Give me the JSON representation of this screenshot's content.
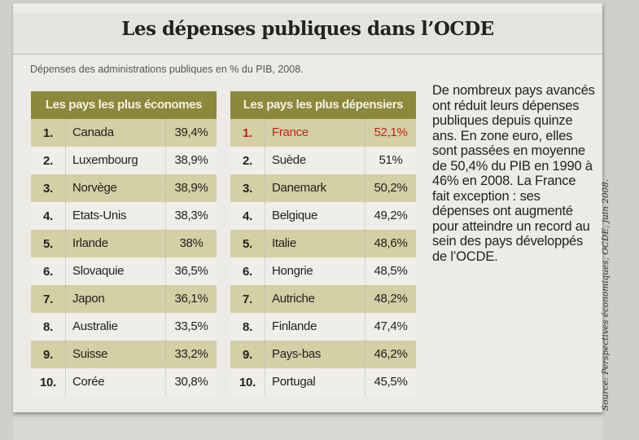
{
  "title": "Les dépenses publiques dans l’OCDE",
  "subtitle": "Dépenses des administrations publiques en % du PIB, 2008.",
  "tables": [
    {
      "header": "Les pays les plus économes",
      "rows": [
        {
          "rank": "1.",
          "country": "Canada",
          "value": "39,4%"
        },
        {
          "rank": "2.",
          "country": "Luxembourg",
          "value": "38,9%"
        },
        {
          "rank": "3.",
          "country": "Norvège",
          "value": "38,9%"
        },
        {
          "rank": "4.",
          "country": "Etats-Unis",
          "value": "38,3%"
        },
        {
          "rank": "5.",
          "country": "Irlande",
          "value": "38%"
        },
        {
          "rank": "6.",
          "country": "Slovaquie",
          "value": "36,5%"
        },
        {
          "rank": "7.",
          "country": "Japon",
          "value": "36,1%"
        },
        {
          "rank": "8.",
          "country": "Australie",
          "value": "33,5%"
        },
        {
          "rank": "9.",
          "country": "Suisse",
          "value": "33,2%"
        },
        {
          "rank": "10.",
          "country": "Corée",
          "value": "30,8%"
        }
      ]
    },
    {
      "header": "Les pays les plus dépensiers",
      "rows": [
        {
          "rank": "1.",
          "country": "France",
          "value": "52,1%"
        },
        {
          "rank": "2.",
          "country": "Suède",
          "value": "51%"
        },
        {
          "rank": "3.",
          "country": "Danemark",
          "value": "50,2%"
        },
        {
          "rank": "4.",
          "country": "Belgique",
          "value": "49,2%"
        },
        {
          "rank": "5.",
          "country": "Italie",
          "value": "48,6%"
        },
        {
          "rank": "6.",
          "country": "Hongrie",
          "value": "48,5%"
        },
        {
          "rank": "7.",
          "country": "Autriche",
          "value": "48,2%"
        },
        {
          "rank": "8.",
          "country": "Finlande",
          "value": "47,4%"
        },
        {
          "rank": "9.",
          "country": "Pays-bas",
          "value": "46,2%"
        },
        {
          "rank": "10.",
          "country": "Portugal",
          "value": "45,5%"
        }
      ]
    }
  ],
  "highlight_color": "#c3241e",
  "header_color": "#8c883c",
  "body_text": "De nombreux pays avancés ont réduit leurs dépenses publiques depuis quinze ans. En zone euro, elles sont passées en moyenne de 50,4% du PIB en 1990 à 46% en 2008. La France fait exception : ses dépenses ont augmenté pour atteindre un record au sein des pays développés de l’OCDE.",
  "source": "Source: Perspectives économiques, OCDE, juin 2008."
}
